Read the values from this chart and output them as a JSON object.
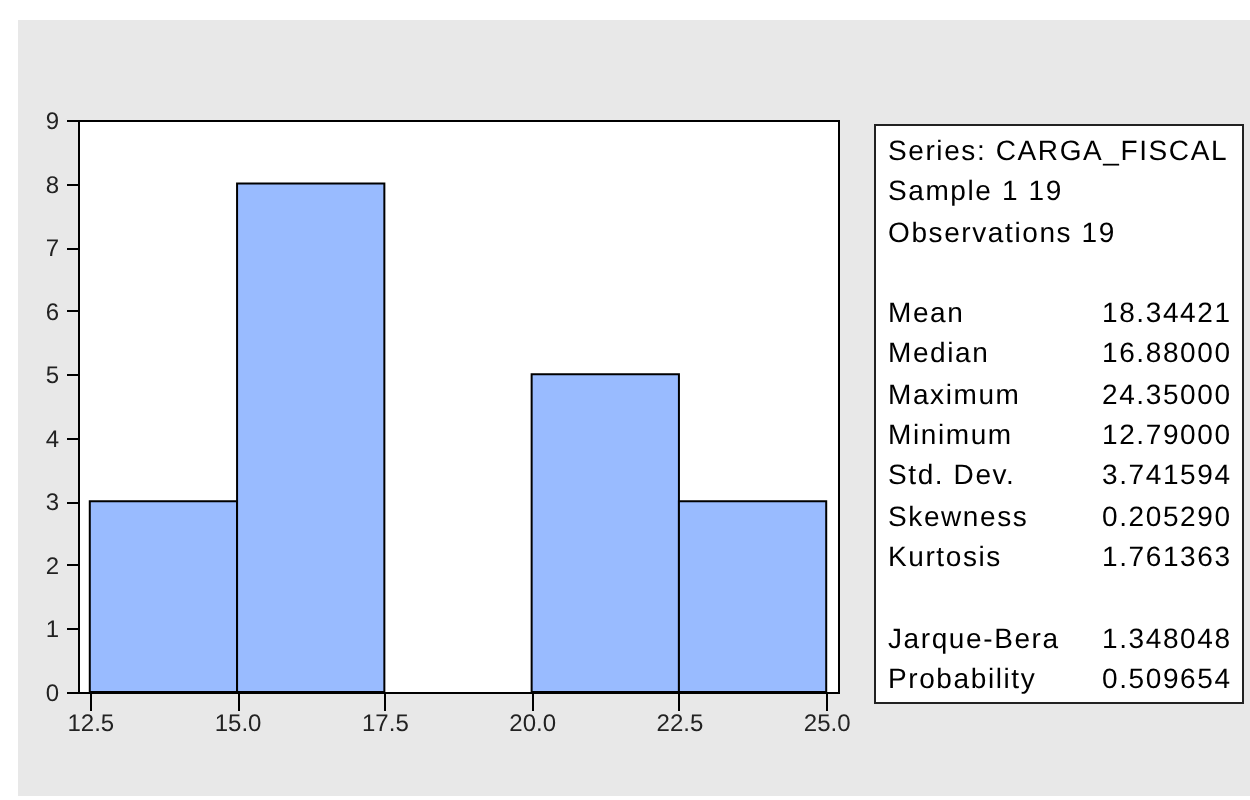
{
  "chart_data": [
    {
      "type": "histogram",
      "bins": [
        12.5,
        15,
        17.5,
        20,
        22.5,
        25
      ],
      "values": [
        3,
        8,
        0,
        5,
        3
      ],
      "color": "#99bbff",
      "xlim": [
        12.3,
        25.2
      ],
      "ylim": [
        0,
        9
      ],
      "xticks": [
        12.5,
        {
          "value": 15,
          "label": "15.0"
        },
        17.5,
        {
          "value": 20,
          "label": "20.0"
        },
        22.5,
        {
          "value": 25,
          "label": "25.0"
        }
      ],
      "yticks": [
        0,
        1,
        2,
        3,
        4,
        5,
        6,
        7,
        8,
        9
      ]
    },
    {
      "type": "other",
      "annotations": [
        "Series: CARGA_FISCAL",
        "Sample 1 19",
        "Observations 19",
        "Mean",
        "18.34421",
        "Median",
        "16.88000",
        "Maximum",
        "24.35000",
        "Minimum",
        "12.79000",
        "Std. Dev.",
        "3.741594",
        "Skewness",
        "0.205290",
        "Kurtosis",
        "1.761363",
        "Jarque-Bera",
        "1.348048",
        "Probability",
        "0.509654"
      ]
    }
  ]
}
